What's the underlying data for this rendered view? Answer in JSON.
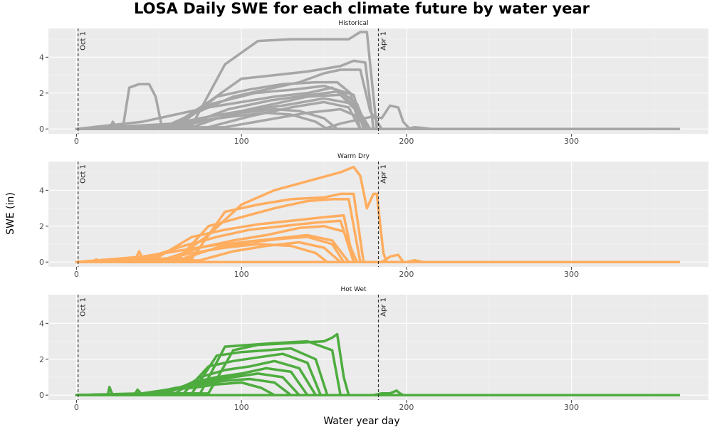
{
  "chart_data": {
    "type": "line",
    "title": "LOSA Daily SWE for each climate future by water year",
    "xlabel": "Water year day",
    "ylabel": "SWE (in)",
    "xlim": [
      -17,
      383
    ],
    "ylim": [
      -0.27,
      5.6
    ],
    "x_ticks": [
      0,
      100,
      200,
      300
    ],
    "y_ticks": [
      0,
      2,
      4
    ],
    "grid": true,
    "legend": "none",
    "reference_lines": [
      {
        "x": 1,
        "label": "Oct 1"
      },
      {
        "x": 183,
        "label": "Apr 1"
      }
    ],
    "panels": [
      {
        "name": "Historical",
        "color": "#A6A6A6",
        "series": [
          {
            "x": [
              0,
              28,
              32,
              38,
              44,
              48,
              52,
              58,
              365
            ],
            "y": [
              0,
              0,
              2.3,
              2.5,
              2.5,
              1.8,
              0,
              0,
              0
            ]
          },
          {
            "x": [
              0,
              70,
              90,
              110,
              130,
              150,
              165,
              172,
              176,
              182,
              365
            ],
            "y": [
              0,
              0.2,
              3.6,
              4.9,
              5.0,
              5.0,
              5.0,
              5.4,
              5.4,
              0,
              0
            ]
          },
          {
            "x": [
              0,
              60,
              80,
              100,
              120,
              140,
              160,
              168,
              175,
              180,
              365
            ],
            "y": [
              0,
              0.3,
              1.5,
              2.8,
              3.0,
              3.2,
              3.5,
              3.8,
              3.7,
              0,
              0
            ]
          },
          {
            "x": [
              0,
              55,
              75,
              95,
              115,
              135,
              150,
              160,
              172,
              178,
              185,
              365
            ],
            "y": [
              0,
              0.2,
              1.0,
              1.8,
              2.2,
              2.6,
              3.1,
              3.3,
              3.3,
              1.0,
              0,
              0
            ]
          },
          {
            "x": [
              0,
              62,
              85,
              105,
              125,
              145,
              158,
              166,
              172,
              365
            ],
            "y": [
              0,
              0.2,
              1.8,
              2.2,
              2.5,
              2.6,
              2.6,
              2.0,
              0,
              0
            ]
          },
          {
            "x": [
              0,
              40,
              60,
              80,
              100,
              120,
              140,
              155,
              170,
              178,
              365
            ],
            "y": [
              0,
              0.4,
              0.8,
              1.2,
              1.5,
              1.8,
              2.0,
              2.3,
              1.2,
              0,
              0
            ]
          },
          {
            "x": [
              0,
              58,
              82,
              108,
              132,
              150,
              168,
              174,
              365
            ],
            "y": [
              0,
              0.2,
              1.4,
              2.0,
              2.2,
              2.4,
              1.9,
              0,
              0
            ]
          },
          {
            "x": [
              0,
              66,
              92,
              118,
              142,
              160,
              170,
              176,
              365
            ],
            "y": [
              0,
              0.2,
              1.1,
              1.6,
              1.9,
              2.1,
              1.4,
              0,
              0
            ]
          },
          {
            "x": [
              0,
              50,
              75,
              100,
              125,
              150,
              168,
              175,
              365
            ],
            "y": [
              0,
              0.1,
              0.6,
              1.0,
              1.3,
              1.7,
              1.4,
              0,
              0
            ]
          },
          {
            "x": [
              0,
              70,
              95,
              120,
              140,
              160,
              172,
              178,
              365
            ],
            "y": [
              0,
              0.1,
              0.9,
              1.4,
              1.8,
              1.9,
              0.8,
              0,
              0
            ]
          },
          {
            "x": [
              0,
              60,
              80,
              100,
              120,
              135,
              150,
              158,
              365
            ],
            "y": [
              0,
              0.1,
              0.5,
              0.9,
              1.1,
              1.0,
              0.6,
              0,
              0
            ]
          },
          {
            "x": [
              0,
              45,
              70,
              95,
              115,
              130,
              145,
              152,
              365
            ],
            "y": [
              0,
              0.1,
              0.4,
              0.7,
              0.9,
              0.8,
              0.4,
              0,
              0
            ]
          },
          {
            "x": [
              0,
              80,
              105,
              130,
              150,
              165,
              172,
              365
            ],
            "y": [
              0,
              0.1,
              0.7,
              1.2,
              1.5,
              1.2,
              0,
              0
            ]
          },
          {
            "x": [
              0,
              90,
              115,
              140,
              160,
              170,
              176,
              365
            ],
            "y": [
              0,
              0.1,
              0.5,
              0.9,
              1.1,
              0.7,
              0,
              0
            ]
          },
          {
            "x": [
              0,
              150,
              160,
              180,
              185,
              190,
              195,
              198,
              202,
              365
            ],
            "y": [
              0,
              0,
              0.3,
              0.7,
              0.6,
              1.3,
              1.2,
              0.4,
              0,
              0
            ]
          },
          {
            "x": [
              0,
              20,
              22,
              24,
              26,
              365
            ],
            "y": [
              0,
              0,
              0.4,
              0.1,
              0,
              0
            ]
          },
          {
            "x": [
              0,
              12,
              14,
              16,
              365
            ],
            "y": [
              0,
              0,
              0.1,
              0,
              0
            ]
          },
          {
            "x": [
              0,
              200,
              205,
              210,
              215,
              365
            ],
            "y": [
              0,
              0,
              0.1,
              0.05,
              0,
              0
            ]
          }
        ]
      },
      {
        "name": "Warm Dry",
        "color": "#FFAD5F",
        "series": [
          {
            "x": [
              0,
              60,
              80,
              100,
              120,
              140,
              160,
              168,
              172,
              176,
              180,
              182,
              186,
              188,
              365
            ],
            "y": [
              0,
              0.2,
              1.5,
              3.2,
              4.0,
              4.5,
              5.0,
              5.3,
              4.8,
              3.0,
              3.8,
              3.8,
              0.5,
              0,
              0
            ]
          },
          {
            "x": [
              0,
              70,
              90,
              110,
              130,
              150,
              160,
              168,
              174,
              365
            ],
            "y": [
              0,
              0.2,
              2.8,
              3.2,
              3.5,
              3.6,
              3.8,
              3.8,
              0,
              0
            ]
          },
          {
            "x": [
              0,
              62,
              80,
              100,
              120,
              140,
              155,
              165,
              172,
              365
            ],
            "y": [
              0,
              0.2,
              2.0,
              2.5,
              3.0,
              3.4,
              3.5,
              3.5,
              0,
              0
            ]
          },
          {
            "x": [
              0,
              50,
              70,
              90,
              110,
              130,
              150,
              162,
              168,
              365
            ],
            "y": [
              0,
              0.3,
              1.4,
              1.8,
              2.1,
              2.3,
              2.5,
              2.6,
              0,
              0
            ]
          },
          {
            "x": [
              0,
              45,
              65,
              85,
              105,
              125,
              145,
              160,
              168,
              365
            ],
            "y": [
              0,
              0.3,
              0.9,
              1.4,
              1.8,
              2.0,
              2.2,
              2.3,
              0,
              0
            ]
          },
          {
            "x": [
              0,
              55,
              75,
              95,
              115,
              135,
              150,
              162,
              170,
              365
            ],
            "y": [
              0,
              0.2,
              0.8,
              1.2,
              1.5,
              1.9,
              2.0,
              1.7,
              0,
              0
            ]
          },
          {
            "x": [
              0,
              40,
              60,
              80,
              100,
              120,
              140,
              155,
              165,
              365
            ],
            "y": [
              0,
              0.3,
              0.6,
              0.9,
              1.1,
              1.3,
              1.5,
              1.2,
              0,
              0
            ]
          },
          {
            "x": [
              0,
              65,
              85,
              105,
              125,
              140,
              155,
              162,
              365
            ],
            "y": [
              0,
              0.2,
              0.8,
              1.1,
              1.3,
              1.4,
              1.0,
              0,
              0
            ]
          },
          {
            "x": [
              0,
              50,
              70,
              90,
              110,
              130,
              145,
              152,
              365
            ],
            "y": [
              0,
              0.1,
              0.5,
              0.8,
              1.0,
              0.9,
              0.5,
              0,
              0
            ]
          },
          {
            "x": [
              0,
              75,
              95,
              115,
              135,
              150,
              160,
              365
            ],
            "y": [
              0,
              0.1,
              0.6,
              0.9,
              1.1,
              0.8,
              0,
              0
            ]
          },
          {
            "x": [
              0,
              35,
              38,
              40,
              43,
              365
            ],
            "y": [
              0,
              0,
              0.6,
              0.2,
              0,
              0
            ]
          },
          {
            "x": [
              0,
              10,
              12,
              14,
              365
            ],
            "y": [
              0,
              0,
              0.15,
              0,
              0
            ]
          },
          {
            "x": [
              0,
              20,
              22,
              24,
              365
            ],
            "y": [
              0,
              0,
              0.12,
              0,
              0
            ]
          },
          {
            "x": [
              0,
              185,
              190,
              195,
              198,
              365
            ],
            "y": [
              0,
              0,
              0.3,
              0.4,
              0,
              0
            ]
          },
          {
            "x": [
              0,
              200,
              205,
              210,
              365
            ],
            "y": [
              0,
              0,
              0.1,
              0,
              0
            ]
          }
        ]
      },
      {
        "name": "Hot Wet",
        "color": "#4EAC3F",
        "series": [
          {
            "x": [
              0,
              80,
              95,
              110,
              130,
              150,
              155,
              158,
              162,
              165,
              365
            ],
            "y": [
              0,
              0.1,
              2.5,
              2.8,
              2.9,
              3.0,
              3.2,
              3.4,
              1.0,
              0,
              0
            ]
          },
          {
            "x": [
              0,
              75,
              90,
              105,
              120,
              140,
              155,
              160,
              365
            ],
            "y": [
              0,
              0.1,
              2.7,
              2.8,
              2.9,
              3.0,
              2.5,
              0,
              0
            ]
          },
          {
            "x": [
              0,
              70,
              85,
              100,
              115,
              130,
              145,
              152,
              365
            ],
            "y": [
              0,
              0.1,
              2.2,
              2.4,
              2.5,
              2.6,
              2.0,
              0,
              0
            ]
          },
          {
            "x": [
              0,
              65,
              80,
              95,
              110,
              125,
              140,
              148,
              365
            ],
            "y": [
              0,
              0.1,
              1.6,
              1.9,
              2.1,
              2.3,
              1.8,
              0,
              0
            ]
          },
          {
            "x": [
              0,
              60,
              75,
              90,
              105,
              120,
              135,
              145,
              365
            ],
            "y": [
              0,
              0.1,
              1.0,
              1.4,
              1.6,
              1.9,
              1.5,
              0,
              0
            ]
          },
          {
            "x": [
              0,
              55,
              70,
              85,
              100,
              115,
              130,
              140,
              365
            ],
            "y": [
              0,
              0.1,
              0.7,
              1.0,
              1.2,
              1.5,
              1.3,
              0,
              0
            ]
          },
          {
            "x": [
              0,
              50,
              65,
              80,
              95,
              110,
              125,
              135,
              365
            ],
            "y": [
              0,
              0.1,
              0.5,
              0.8,
              1.0,
              1.2,
              1.0,
              0,
              0
            ]
          },
          {
            "x": [
              0,
              45,
              60,
              75,
              90,
              105,
              120,
              130,
              365
            ],
            "y": [
              0,
              0.1,
              0.4,
              0.6,
              0.8,
              0.9,
              0.7,
              0,
              0
            ]
          },
          {
            "x": [
              0,
              40,
              55,
              70,
              85,
              100,
              112,
              120,
              365
            ],
            "y": [
              0,
              0.1,
              0.3,
              0.4,
              0.6,
              0.7,
              0.4,
              0,
              0
            ]
          },
          {
            "x": [
              0,
              35,
              37,
              39,
              41,
              365
            ],
            "y": [
              0,
              0,
              0.3,
              0.1,
              0,
              0
            ]
          },
          {
            "x": [
              0,
              19,
              20,
              21,
              22,
              365
            ],
            "y": [
              0,
              0,
              0.45,
              0.2,
              0,
              0
            ]
          },
          {
            "x": [
              0,
              180,
              185,
              190,
              194,
              196,
              198,
              365
            ],
            "y": [
              0,
              0,
              0.1,
              0.1,
              0.25,
              0.1,
              0,
              0
            ]
          }
        ]
      }
    ]
  }
}
